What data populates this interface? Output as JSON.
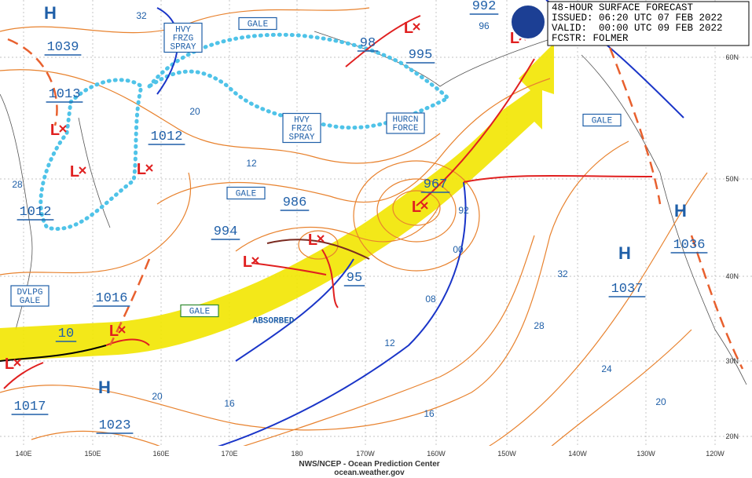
{
  "header": {
    "lines": [
      "48-HOUR SURFACE FORECAST",
      "ISSUED: 06:20 UTC 07 FEB 2022",
      "VALID:  00:00 UTC 09 FEB 2022",
      "FCSTR: FOLMER"
    ]
  },
  "footer": {
    "agency": "NWS/NCEP - Ocean Prediction Center",
    "url": "ocean.weather.gov"
  },
  "longitudes": [
    "140E",
    "150E",
    "160E",
    "170E",
    "180",
    "170W",
    "160W",
    "150W",
    "140W",
    "130W",
    "120W"
  ],
  "latitudes": [
    "60N",
    "50N",
    "40N",
    "30N",
    "20N"
  ],
  "pressures": [
    "1039",
    "1013",
    "1012",
    "1012",
    "1016",
    "10",
    "1017",
    "1023",
    "994",
    "986",
    "98",
    "995",
    "992",
    "967",
    "95",
    "1036",
    "1037"
  ],
  "isobar_labels": [
    "32",
    "96",
    "20",
    "12",
    "28",
    "92",
    "00",
    "08",
    "12",
    "16",
    "20",
    "16",
    "32",
    "28",
    "24",
    "20"
  ],
  "highs": [
    "H",
    "H",
    "H",
    "H"
  ],
  "lows": [
    "L",
    "L",
    "L",
    "L",
    "L",
    "L",
    "L",
    "L",
    "L",
    "L"
  ],
  "warnings": [
    {
      "lines": [
        "GALE"
      ]
    },
    {
      "lines": [
        "HVY",
        "FRZG",
        "SPRAY"
      ]
    },
    {
      "lines": [
        "HVY",
        "FRZG",
        "SPRAY"
      ]
    },
    {
      "lines": [
        "HURCN",
        "FORCE"
      ]
    },
    {
      "lines": [
        "GALE"
      ]
    },
    {
      "lines": [
        "GALE"
      ]
    },
    {
      "lines": [
        "GALE"
      ]
    },
    {
      "lines": [
        "DVLPG",
        "GALE"
      ]
    },
    {
      "lines": [
        "ABSORBED"
      ]
    }
  ]
}
